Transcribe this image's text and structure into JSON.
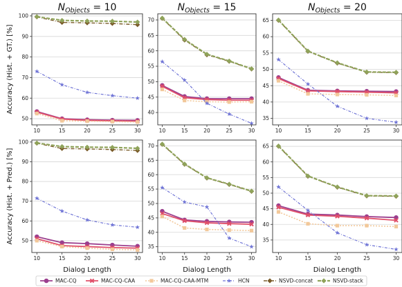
{
  "figure": {
    "column_titles": [
      {
        "base": "N",
        "sub": "Objects",
        "eq": " = 10"
      },
      {
        "base": "N",
        "sub": "Objects",
        "eq": " = 15"
      },
      {
        "base": "N",
        "sub": "Objects",
        "eq": " = 20"
      }
    ],
    "row_ylabels": [
      "Accuracy (Hist. + GT.) [%]",
      "Accuracy (Hist. + Pred.) [%]"
    ],
    "xlabel": "Dialog Length"
  },
  "series_style": [
    {
      "name": "MAC-CQ",
      "color": "#9b3f8e",
      "marker": "circle",
      "dash": "",
      "width": 1.8
    },
    {
      "name": "MAC-CQ-CAA",
      "color": "#e0506a",
      "marker": "x",
      "dash": "",
      "width": 1.8
    },
    {
      "name": "MAC-CQ-CAA-MTM",
      "color": "#f2c89a",
      "marker": "square",
      "dash": "2,2",
      "width": 1.6
    },
    {
      "name": "HCN",
      "color": "#6f74d6",
      "marker": "star",
      "dash": "4,2,1,2",
      "width": 1.2
    },
    {
      "name": "NSVD-concat",
      "color": "#7a5c2a",
      "marker": "diamond",
      "dash": "5,2,1,2",
      "width": 1.4
    },
    {
      "name": "NSVD-stack",
      "color": "#8fa35a",
      "marker": "diamond",
      "dash": "5,2",
      "width": 2.2
    }
  ],
  "chart_data": [
    {
      "type": "line",
      "row": 0,
      "col": 0,
      "x": [
        10,
        15,
        20,
        25,
        30
      ],
      "xticks": [
        10,
        15,
        20,
        25,
        30
      ],
      "xlim": [
        9,
        31
      ],
      "ylim": [
        47,
        101
      ],
      "yticks": [
        50,
        60,
        70,
        80,
        90,
        100
      ],
      "grid": true,
      "series": [
        {
          "name": "MAC-CQ",
          "values": [
            53.5,
            50.0,
            49.5,
            49.3,
            49.2
          ]
        },
        {
          "name": "MAC-CQ-CAA",
          "values": [
            53.2,
            49.8,
            49.2,
            49.0,
            48.8
          ]
        },
        {
          "name": "MAC-CQ-CAA-MTM",
          "values": [
            52.5,
            49.0,
            48.8,
            48.6,
            48.4
          ]
        },
        {
          "name": "HCN",
          "values": [
            73.0,
            66.5,
            62.8,
            61.2,
            60.0
          ]
        },
        {
          "name": "NSVD-concat",
          "values": [
            99.5,
            96.8,
            96.6,
            96.3,
            95.7
          ]
        },
        {
          "name": "NSVD-stack",
          "values": [
            99.6,
            97.8,
            97.5,
            97.4,
            97.0
          ]
        }
      ]
    },
    {
      "type": "line",
      "row": 0,
      "col": 1,
      "x": [
        10,
        15,
        20,
        25,
        30
      ],
      "xticks": [
        10,
        15,
        20,
        25,
        30
      ],
      "xlim": [
        9,
        31
      ],
      "ylim": [
        36,
        72
      ],
      "yticks": [
        40,
        45,
        50,
        55,
        60,
        65,
        70
      ],
      "grid": true,
      "series": [
        {
          "name": "MAC-CQ",
          "values": [
            48.8,
            45.2,
            44.5,
            44.5,
            44.5
          ]
        },
        {
          "name": "MAC-CQ-CAA",
          "values": [
            48.5,
            44.8,
            44.2,
            44.0,
            44.0
          ]
        },
        {
          "name": "MAC-CQ-CAA-MTM",
          "values": [
            47.5,
            43.9,
            43.5,
            43.4,
            43.5
          ]
        },
        {
          "name": "HCN",
          "values": [
            56.5,
            50.5,
            43.0,
            39.5,
            36.5
          ]
        },
        {
          "name": "NSVD-concat",
          "values": [
            70.5,
            63.5,
            58.7,
            56.6,
            54.1
          ]
        },
        {
          "name": "NSVD-stack",
          "values": [
            70.6,
            63.7,
            58.9,
            56.7,
            54.2
          ]
        }
      ]
    },
    {
      "type": "line",
      "row": 0,
      "col": 2,
      "x": [
        10,
        15,
        20,
        25,
        30
      ],
      "xticks": [
        10,
        15,
        20,
        25,
        30
      ],
      "xlim": [
        9,
        31
      ],
      "ylim": [
        33,
        67
      ],
      "yticks": [
        35,
        40,
        45,
        50,
        55,
        60,
        65
      ],
      "grid": true,
      "series": [
        {
          "name": "MAC-CQ",
          "values": [
            47.5,
            43.6,
            43.4,
            43.3,
            43.2
          ]
        },
        {
          "name": "MAC-CQ-CAA",
          "values": [
            47.2,
            43.4,
            43.2,
            43.0,
            42.8
          ]
        },
        {
          "name": "MAC-CQ-CAA-MTM",
          "values": [
            46.5,
            42.5,
            42.3,
            42.2,
            42.0
          ]
        },
        {
          "name": "HCN",
          "values": [
            53.0,
            45.5,
            38.7,
            35.0,
            33.8
          ]
        },
        {
          "name": "NSVD-concat",
          "values": [
            65.0,
            55.5,
            51.9,
            49.1,
            49.0
          ]
        },
        {
          "name": "NSVD-stack",
          "values": [
            65.1,
            55.6,
            52.0,
            49.2,
            49.1
          ]
        }
      ]
    },
    {
      "type": "line",
      "row": 1,
      "col": 0,
      "x": [
        10,
        15,
        20,
        25,
        30
      ],
      "xticks": [
        10,
        15,
        20,
        25,
        30
      ],
      "xlim": [
        9,
        31
      ],
      "ylim": [
        44,
        101
      ],
      "yticks": [
        50,
        60,
        70,
        80,
        90,
        100
      ],
      "grid": true,
      "series": [
        {
          "name": "MAC-CQ",
          "values": [
            52.0,
            49.0,
            48.5,
            47.8,
            47.2
          ]
        },
        {
          "name": "MAC-CQ-CAA",
          "values": [
            51.0,
            47.5,
            47.0,
            46.5,
            46.2
          ]
        },
        {
          "name": "MAC-CQ-CAA-MTM",
          "values": [
            50.0,
            47.0,
            46.2,
            45.6,
            45.3
          ]
        },
        {
          "name": "HCN",
          "values": [
            71.5,
            65.0,
            60.5,
            58.0,
            56.8
          ]
        },
        {
          "name": "NSVD-concat",
          "values": [
            99.4,
            96.7,
            96.5,
            96.2,
            95.7
          ]
        },
        {
          "name": "NSVD-stack",
          "values": [
            99.5,
            97.7,
            97.4,
            97.3,
            96.8
          ]
        }
      ]
    },
    {
      "type": "line",
      "row": 1,
      "col": 1,
      "x": [
        10,
        15,
        20,
        25,
        30
      ],
      "xticks": [
        10,
        15,
        20,
        25,
        30
      ],
      "xlim": [
        9,
        31
      ],
      "ylim": [
        33,
        72
      ],
      "yticks": [
        35,
        40,
        45,
        50,
        55,
        60,
        65,
        70
      ],
      "grid": true,
      "series": [
        {
          "name": "MAC-CQ",
          "values": [
            47.3,
            44.3,
            43.8,
            43.6,
            43.5
          ]
        },
        {
          "name": "MAC-CQ-CAA",
          "values": [
            46.5,
            44.0,
            43.3,
            43.0,
            42.8
          ]
        },
        {
          "name": "MAC-CQ-CAA-MTM",
          "values": [
            45.5,
            41.5,
            41.0,
            40.8,
            40.6
          ]
        },
        {
          "name": "HCN",
          "values": [
            55.5,
            50.5,
            48.8,
            38.0,
            35.0
          ]
        },
        {
          "name": "NSVD-concat",
          "values": [
            70.5,
            63.6,
            58.8,
            56.6,
            54.2
          ]
        },
        {
          "name": "NSVD-stack",
          "values": [
            70.6,
            63.7,
            58.9,
            56.7,
            54.3
          ]
        }
      ]
    },
    {
      "type": "line",
      "row": 1,
      "col": 2,
      "x": [
        10,
        15,
        20,
        25,
        30
      ],
      "xticks": [
        10,
        15,
        20,
        25,
        30
      ],
      "xlim": [
        9,
        31
      ],
      "ylim": [
        31,
        67
      ],
      "yticks": [
        35,
        40,
        45,
        50,
        55,
        60,
        65
      ],
      "grid": true,
      "series": [
        {
          "name": "MAC-CQ",
          "values": [
            46.0,
            43.3,
            43.0,
            42.5,
            42.2
          ]
        },
        {
          "name": "MAC-CQ-CAA",
          "values": [
            45.5,
            43.0,
            42.6,
            42.0,
            41.3
          ]
        },
        {
          "name": "MAC-CQ-CAA-MTM",
          "values": [
            44.0,
            40.2,
            39.6,
            39.6,
            39.3
          ]
        },
        {
          "name": "HCN",
          "values": [
            52.0,
            44.5,
            37.3,
            33.5,
            32.0
          ]
        },
        {
          "name": "NSVD-concat",
          "values": [
            65.0,
            55.4,
            51.9,
            49.1,
            49.0
          ]
        },
        {
          "name": "NSVD-stack",
          "values": [
            65.1,
            55.5,
            52.0,
            49.2,
            49.1
          ]
        }
      ]
    }
  ]
}
